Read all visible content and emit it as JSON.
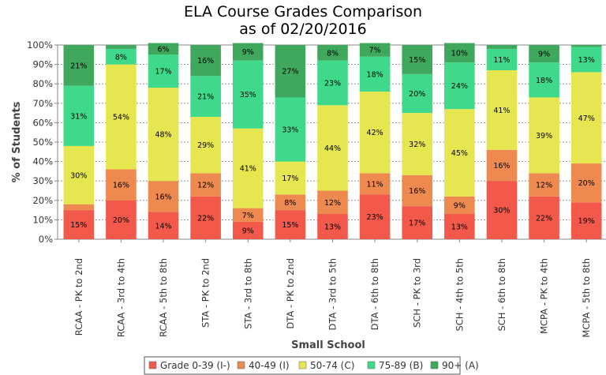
{
  "chart_data": {
    "type": "bar",
    "stacked": true,
    "title": [
      "ELA Course Grades Comparison",
      "as of 02/20/2016"
    ],
    "xlabel": "Small School",
    "ylabel": "% of Students",
    "ylim": [
      0,
      100
    ],
    "yticks": [
      "0%",
      "10%",
      "20%",
      "30%",
      "40%",
      "50%",
      "60%",
      "70%",
      "80%",
      "90%",
      "100%"
    ],
    "grid": true,
    "legend_position": "bottom",
    "categories": [
      "RCAA - PK to 2nd",
      "RCAA - 3rd to 4th",
      "RCAA - 5th to 8th",
      "STA - PK to 2nd",
      "STA - 3rd to 8th",
      "DTA - PK to 2nd",
      "DTA - 3rd to 5th",
      "DTA - 6th to 8th",
      "SCH - PK to 3rd",
      "SCH - 4th to 5th",
      "SCH - 6th to 8th",
      "MCPA - PK to 4th",
      "MCPA - 5th to 8th"
    ],
    "series": [
      {
        "name": "Grade 0-39 (I-)",
        "color": "#f2594b",
        "values": [
          15,
          20,
          14,
          22,
          9,
          15,
          13,
          23,
          17,
          13,
          30,
          22,
          19
        ],
        "labels": [
          "15%",
          "20%",
          "14%",
          "22%",
          "9%",
          "15%",
          "13%",
          "23%",
          "17%",
          "13%",
          "30%",
          "22%",
          "19%"
        ]
      },
      {
        "name": "40-49 (I)",
        "color": "#ee8a4f",
        "values": [
          3,
          16,
          16,
          12,
          7,
          8,
          12,
          11,
          16,
          9,
          16,
          12,
          20
        ],
        "labels": [
          "",
          "16%",
          "16%",
          "12%",
          "7%",
          "8%",
          "12%",
          "11%",
          "16%",
          "9%",
          "16%",
          "12%",
          "20%"
        ]
      },
      {
        "name": "50-74 (C)",
        "color": "#e6e650",
        "values": [
          30,
          54,
          48,
          29,
          41,
          17,
          44,
          42,
          32,
          45,
          41,
          39,
          47
        ],
        "labels": [
          "30%",
          "54%",
          "48%",
          "29%",
          "41%",
          "17%",
          "44%",
          "42%",
          "32%",
          "45%",
          "41%",
          "39%",
          "47%"
        ]
      },
      {
        "name": "75-89 (B)",
        "color": "#3ed98a",
        "values": [
          31,
          8,
          17,
          21,
          35,
          33,
          23,
          18,
          20,
          24,
          11,
          18,
          13
        ],
        "labels": [
          "31%",
          "8%",
          "17%",
          "21%",
          "35%",
          "33%",
          "23%",
          "18%",
          "20%",
          "24%",
          "11%",
          "18%",
          "13%"
        ]
      },
      {
        "name": "90+ (A)",
        "color": "#3fa85c",
        "values": [
          21,
          2,
          6,
          16,
          9,
          27,
          8,
          7,
          15,
          10,
          2,
          9,
          1
        ],
        "labels": [
          "21%",
          "",
          "6%",
          "16%",
          "9%",
          "27%",
          "8%",
          "7%",
          "15%",
          "10%",
          "",
          "9%",
          ""
        ]
      }
    ]
  }
}
